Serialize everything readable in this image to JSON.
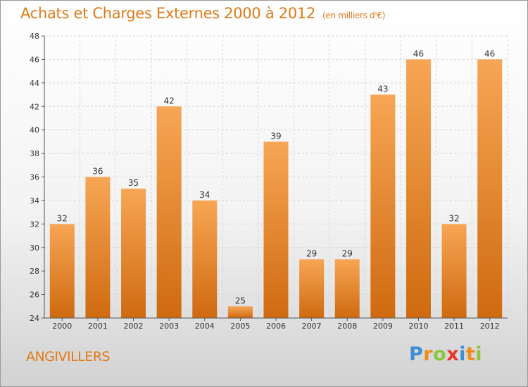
{
  "title": "Achats et Charges Externes 2000 à 2012",
  "unit": "(en milliers d'€)",
  "commune": "ANGIVILLERS",
  "logo": {
    "letters": [
      "P",
      "r",
      "o",
      "x",
      "i",
      "t",
      "i"
    ],
    "colors": [
      "#3a8fd6",
      "#f08a1a",
      "#8cc63f",
      "#e8342a",
      "#3a8fd6",
      "#f08a1a",
      "#8cc63f"
    ]
  },
  "chart_data": {
    "type": "bar",
    "categories": [
      "2000",
      "2001",
      "2002",
      "2003",
      "2004",
      "2005",
      "2006",
      "2007",
      "2008",
      "2009",
      "2010",
      "2011",
      "2012"
    ],
    "values": [
      32,
      36,
      35,
      42,
      34,
      25,
      39,
      29,
      29,
      43,
      46,
      32,
      46
    ],
    "title": "Achats et Charges Externes 2000 à 2012",
    "subtitle": "(en milliers d'€)",
    "ylim": [
      24,
      48
    ],
    "yticks": [
      24,
      26,
      28,
      30,
      32,
      34,
      36,
      38,
      40,
      42,
      44,
      46,
      48
    ],
    "grid": true,
    "bar_color_top": "#f7a655",
    "bar_color_bottom": "#cf6a10"
  }
}
